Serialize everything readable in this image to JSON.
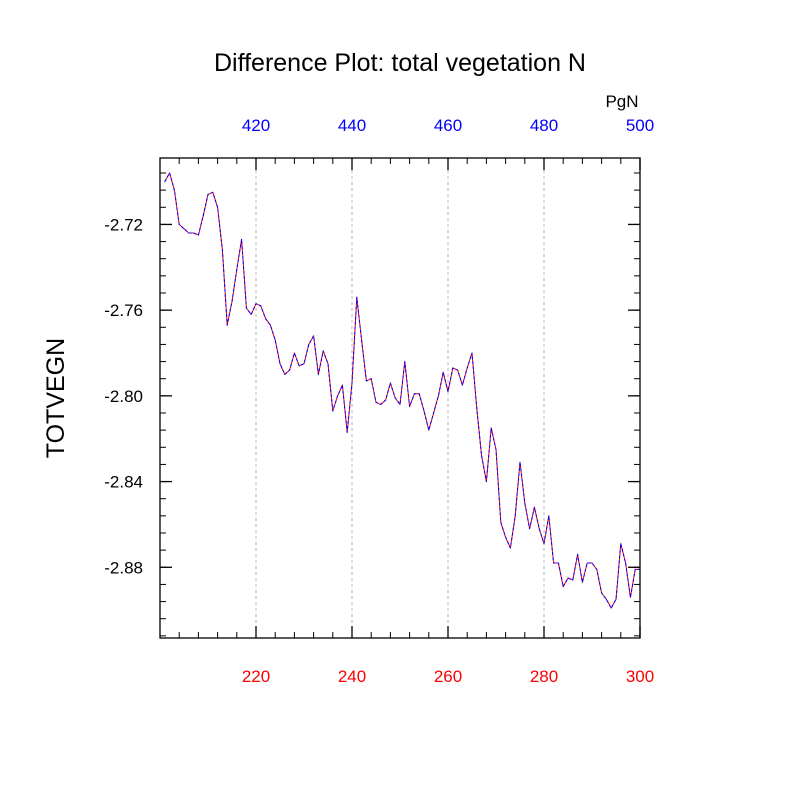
{
  "chart_data": {
    "type": "line",
    "title": "Difference Plot: total vegetation N",
    "ylabel": "TOTVEGN",
    "top_axis_units": "PgN",
    "xlim": [
      200,
      300
    ],
    "ylim": [
      -2.913,
      -2.689
    ],
    "top_xlim": [
      400,
      500
    ],
    "grid": "dashed vertical lines at top-axis ticks",
    "bottom_ticks": [
      {
        "value": 220,
        "label": "220"
      },
      {
        "value": 240,
        "label": "240"
      },
      {
        "value": 260,
        "label": "260"
      },
      {
        "value": 280,
        "label": "280"
      },
      {
        "value": 300,
        "label": "300"
      }
    ],
    "top_ticks": [
      {
        "value": 420,
        "label": "420"
      },
      {
        "value": 440,
        "label": "440"
      },
      {
        "value": 460,
        "label": "460"
      },
      {
        "value": 480,
        "label": "480"
      },
      {
        "value": 500,
        "label": "500"
      }
    ],
    "y_ticks": [
      {
        "value": -2.72,
        "label": "-2.72"
      },
      {
        "value": -2.76,
        "label": "-2.76"
      },
      {
        "value": -2.8,
        "label": "-2.80"
      },
      {
        "value": -2.84,
        "label": "-2.84"
      },
      {
        "value": -2.88,
        "label": "-2.88"
      }
    ],
    "colors": {
      "bottom_axis_labels": "#ff0000",
      "top_axis_labels": "#0000ff",
      "series_1": "#ff0000",
      "series_2": "#0000ff",
      "grid": "#b4b4b4"
    },
    "series": [
      {
        "x": [
          201,
          202,
          203,
          204,
          205,
          206,
          207,
          208,
          209,
          210,
          211,
          212,
          213,
          214,
          215,
          216,
          217,
          218,
          219,
          220,
          221,
          222,
          223,
          224,
          225,
          226,
          227,
          228,
          229,
          230,
          231,
          232,
          233,
          234,
          235,
          236,
          237,
          238,
          239,
          240,
          241,
          242,
          243,
          244,
          245,
          246,
          247,
          248,
          249,
          250,
          251,
          252,
          253,
          254,
          255,
          256,
          257,
          258,
          259,
          260,
          261,
          262,
          263,
          264,
          265,
          266,
          267,
          268,
          269,
          270,
          271,
          272,
          273,
          274,
          275,
          276,
          277,
          278,
          279,
          280,
          281,
          282,
          283,
          284,
          285,
          286,
          287,
          288,
          289,
          290,
          291,
          292,
          293,
          294,
          295,
          296,
          297,
          298,
          299,
          300
        ],
        "values": [
          -2.7,
          -2.696,
          -2.704,
          -2.72,
          -2.722,
          -2.724,
          -2.724,
          -2.725,
          -2.716,
          -2.706,
          -2.705,
          -2.712,
          -2.732,
          -2.767,
          -2.756,
          -2.741,
          -2.727,
          -2.759,
          -2.762,
          -2.757,
          -2.758,
          -2.764,
          -2.767,
          -2.774,
          -2.785,
          -2.79,
          -2.788,
          -2.78,
          -2.786,
          -2.785,
          -2.776,
          -2.772,
          -2.79,
          -2.779,
          -2.785,
          -2.807,
          -2.8,
          -2.795,
          -2.817,
          -2.794,
          -2.754,
          -2.774,
          -2.793,
          -2.792,
          -2.803,
          -2.804,
          -2.802,
          -2.794,
          -2.801,
          -2.804,
          -2.784,
          -2.805,
          -2.799,
          -2.799,
          -2.807,
          -2.816,
          -2.808,
          -2.8,
          -2.789,
          -2.798,
          -2.787,
          -2.788,
          -2.795,
          -2.787,
          -2.78,
          -2.806,
          -2.828,
          -2.84,
          -2.815,
          -2.825,
          -2.859,
          -2.866,
          -2.871,
          -2.856,
          -2.831,
          -2.85,
          -2.862,
          -2.852,
          -2.862,
          -2.869,
          -2.856,
          -2.878,
          -2.878,
          -2.889,
          -2.885,
          -2.886,
          -2.874,
          -2.887,
          -2.878,
          -2.878,
          -2.881,
          -2.892,
          -2.895,
          -2.899,
          -2.895,
          -2.869,
          -2.878,
          -2.894,
          -2.881,
          -2.881
        ]
      }
    ]
  }
}
